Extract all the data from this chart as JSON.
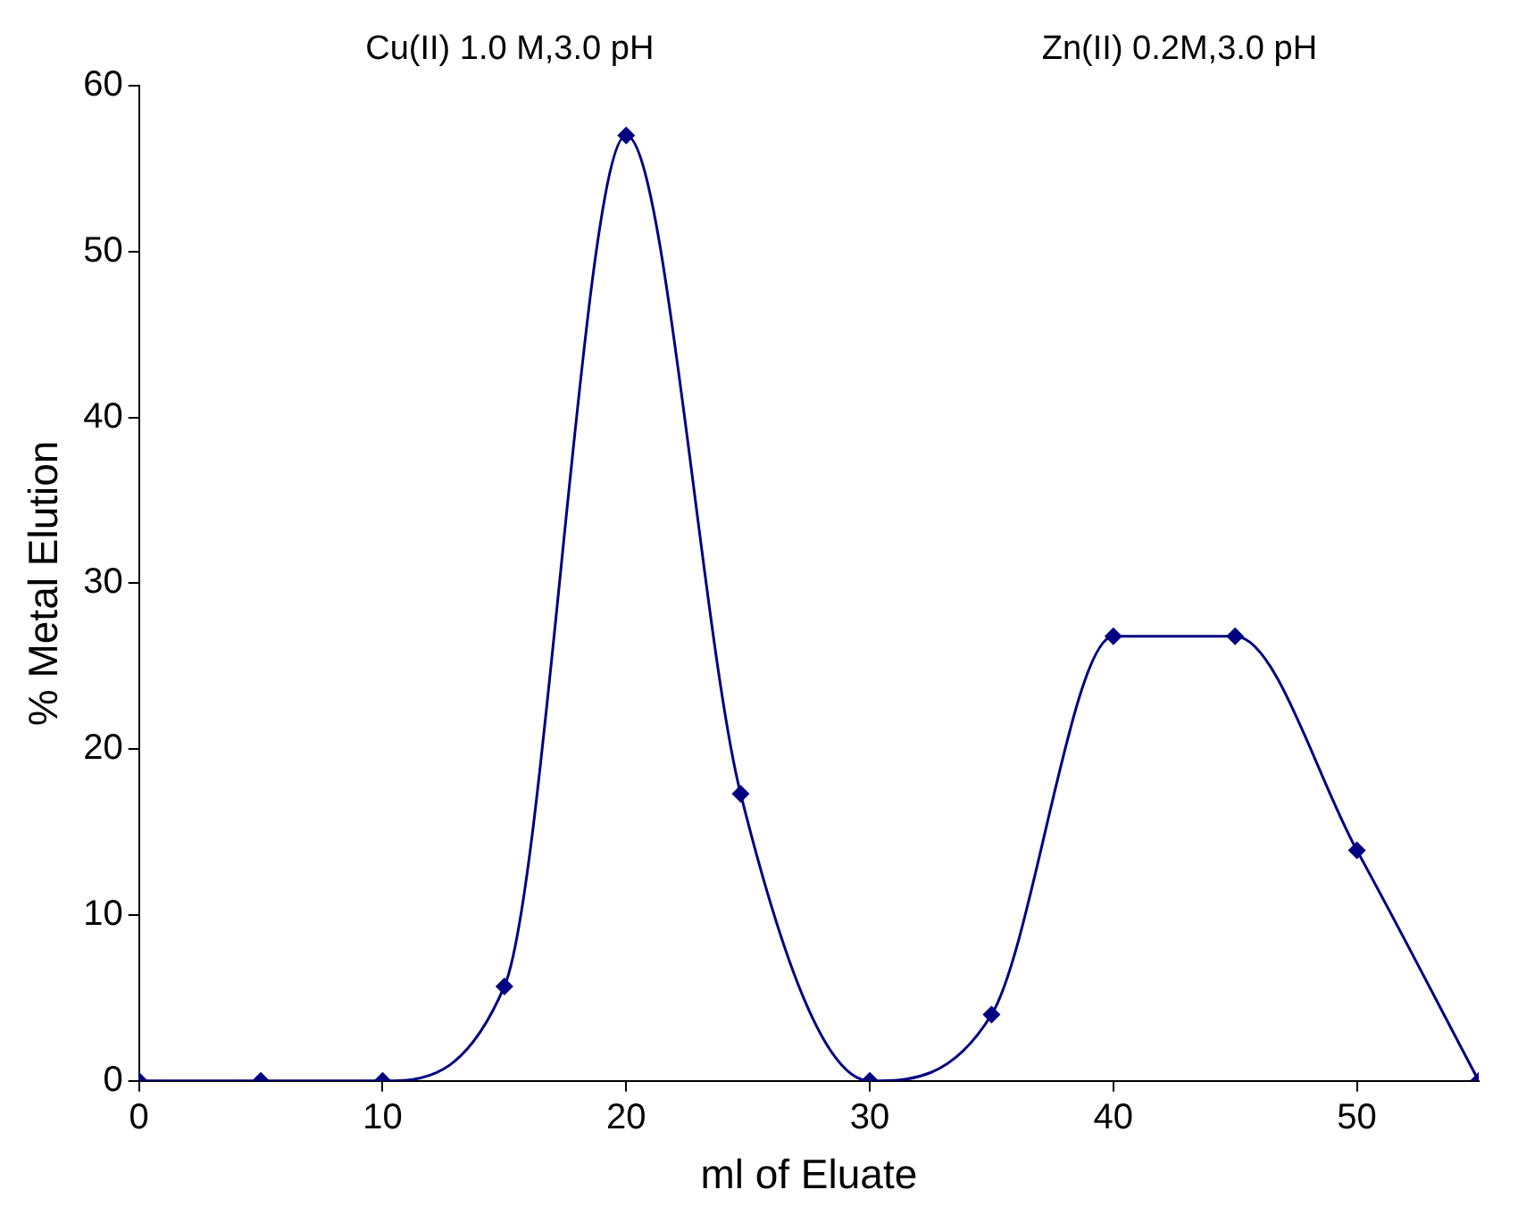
{
  "chart_data": {
    "type": "line",
    "xlabel": "ml of Eluate",
    "ylabel": "% Metal Elution",
    "annotations": [
      "Cu(II) 1.0 M,3.0 pH",
      "Zn(II) 0.2M,3.0 pH"
    ],
    "x": [
      0,
      5,
      10,
      15,
      20,
      24.7,
      30,
      35,
      40,
      45,
      50,
      55
    ],
    "series": [
      {
        "color": "#000080",
        "values": [
          0,
          0,
          0,
          5.7,
          57,
          17.3,
          0,
          4,
          26.8,
          26.8,
          13.9,
          0
        ]
      }
    ],
    "xlim": [
      0,
      55
    ],
    "xticks": [
      0,
      10,
      20,
      30,
      40,
      50
    ],
    "ylim": [
      0,
      60
    ],
    "yticks": [
      0,
      10,
      20,
      30,
      40,
      50,
      60
    ],
    "grid": false,
    "legend": false,
    "marker": "diamond",
    "line_style": "solid"
  }
}
